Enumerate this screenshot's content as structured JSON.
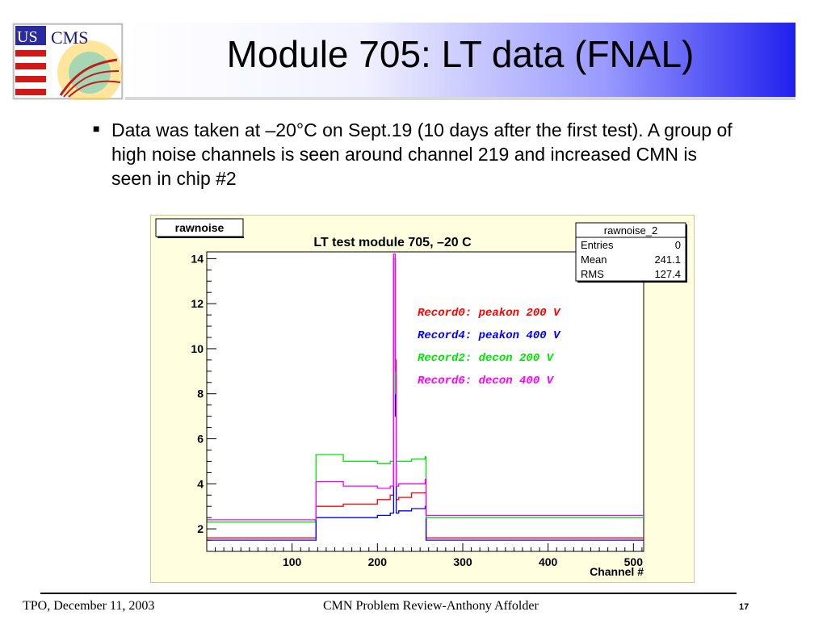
{
  "logo": {
    "text_us": "US",
    "text_cms": "CMS"
  },
  "slide": {
    "title": "Module 705: LT data (FNAL)",
    "bullet": "Data was taken at –20°C on Sept.19 (10 days after the first test). A group of high noise channels is seen around channel 219 and increased CMN is seen in chip #2"
  },
  "colors": {
    "red": "#ff0000",
    "blue": "#0000ff",
    "green": "#00e600",
    "magenta": "#ff00ff",
    "chart_bg": "#ffffe0"
  },
  "chart_data": {
    "type": "line",
    "title": "LT test module 705, –20 C",
    "histogram_name": "rawnoise",
    "xlabel": "Channel #",
    "ylabel": "",
    "xlim": [
      0,
      512
    ],
    "ylim": [
      1,
      14.3
    ],
    "x_ticks": [
      100,
      200,
      300,
      400,
      500
    ],
    "y_ticks": [
      2,
      4,
      6,
      8,
      10,
      12,
      14
    ],
    "grid": false,
    "legend_position": "right",
    "stats_box": {
      "name": "rawnoise_2",
      "rows": [
        {
          "label": "Entries",
          "value": "0"
        },
        {
          "label": "Mean",
          "value": "241.1"
        },
        {
          "label": "RMS",
          "value": "127.4"
        }
      ]
    },
    "series": [
      {
        "name": "Record0: peakon 200 V",
        "color": "#ff0000",
        "x": [
          0,
          127,
          128,
          160,
          200,
          215,
          219,
          221,
          222,
          225,
          240,
          256,
          257,
          320,
          400,
          512
        ],
        "y": [
          1.6,
          1.6,
          3.0,
          3.1,
          3.3,
          3.5,
          14.0,
          9.5,
          3.3,
          3.4,
          3.6,
          3.6,
          1.6,
          1.6,
          1.6,
          1.6
        ]
      },
      {
        "name": "Record4: peakon 400 V",
        "color": "#0000ff",
        "x": [
          0,
          127,
          128,
          160,
          200,
          215,
          219,
          221,
          222,
          225,
          240,
          256,
          257,
          320,
          400,
          512
        ],
        "y": [
          1.5,
          1.5,
          2.5,
          2.5,
          2.6,
          2.7,
          14.0,
          7.0,
          2.7,
          2.8,
          2.9,
          3.0,
          1.5,
          1.5,
          1.5,
          1.5
        ]
      },
      {
        "name": "Record2: decon 200 V",
        "color": "#00e600",
        "x": [
          0,
          127,
          128,
          160,
          200,
          215,
          219,
          221,
          222,
          225,
          240,
          256,
          257,
          320,
          400,
          512
        ],
        "y": [
          2.3,
          2.4,
          5.3,
          5.0,
          4.9,
          5.0,
          14.0,
          8.0,
          5.0,
          5.0,
          5.1,
          5.2,
          2.5,
          2.5,
          2.5,
          2.5
        ]
      },
      {
        "name": "Record6: decon 400 V",
        "color": "#ff00ff",
        "x": [
          0,
          127,
          128,
          160,
          200,
          215,
          219,
          221,
          222,
          225,
          240,
          256,
          257,
          320,
          400,
          512
        ],
        "y": [
          2.4,
          2.4,
          4.1,
          3.9,
          3.8,
          3.9,
          14.2,
          9.0,
          3.9,
          4.0,
          4.0,
          4.2,
          2.6,
          2.6,
          2.6,
          2.6
        ]
      }
    ]
  },
  "footer": {
    "left": "TPO, December 11, 2003",
    "center": "CMN Problem Review-Anthony Affolder",
    "page": "17"
  }
}
